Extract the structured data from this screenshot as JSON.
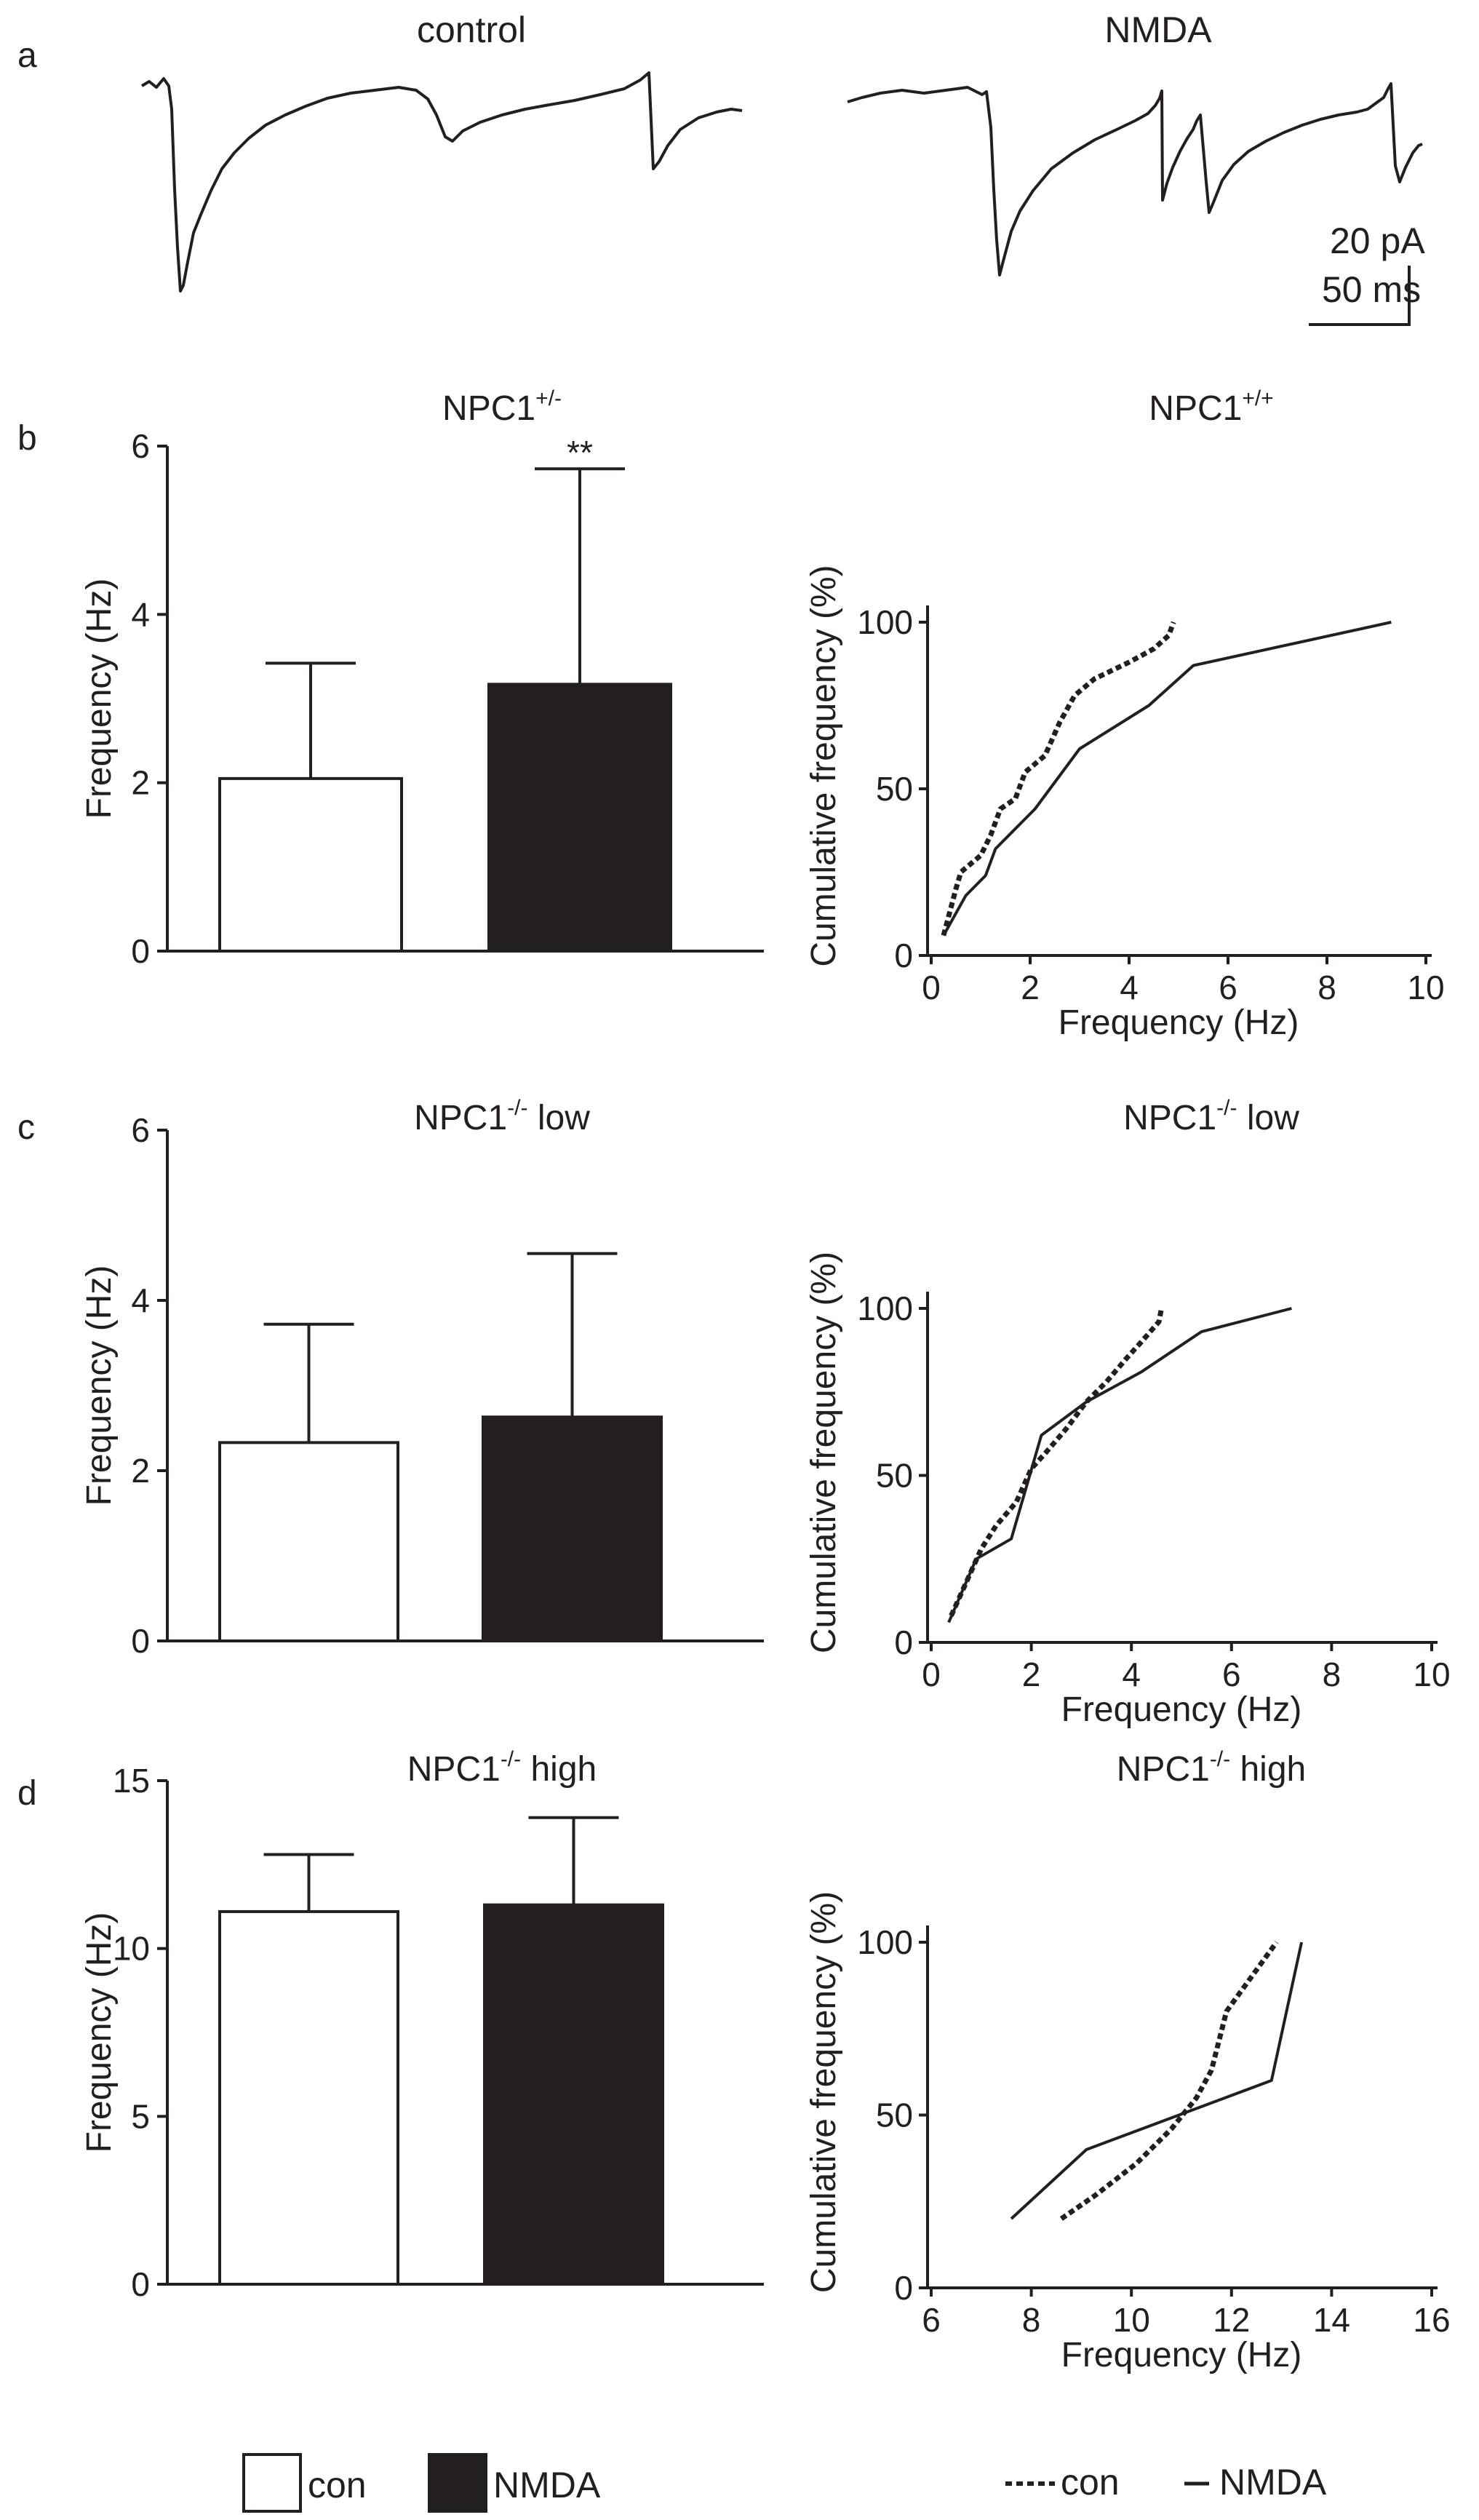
{
  "panels": {
    "a": "a",
    "b": "b",
    "c": "c",
    "d": "d"
  },
  "traces": {
    "control_label": "control",
    "nmda_label": "NMDA"
  },
  "scalebar": {
    "amplitude": "20 pA",
    "time": "50 ms"
  },
  "legend": {
    "bar_con": "con",
    "bar_nmda": "NMDA",
    "line_con": "con",
    "line_nmda": "NMDA",
    "con_style": "dashed",
    "nmda_style": "solid",
    "con_fill": "#ffffff",
    "nmda_fill": "#231f20"
  },
  "chart_data": [
    {
      "id": "b-bar",
      "type": "bar",
      "title": "NPC1",
      "title_superscript": "+/-",
      "xlabel": "",
      "ylabel": "Frequency (Hz)",
      "ylim": [
        0,
        6
      ],
      "yticks": [
        0,
        2,
        4,
        6
      ],
      "categories": [
        "con",
        "NMDA"
      ],
      "values": [
        2.05,
        3.17
      ],
      "errors": [
        1.37,
        2.56
      ],
      "colors": [
        "#ffffff",
        "#231f20"
      ],
      "annotations": [
        {
          "text": "**",
          "category": "NMDA"
        }
      ]
    },
    {
      "id": "b-cdf",
      "type": "line",
      "title": "NPC1",
      "title_superscript": "+/+",
      "xlabel": "Frequency (Hz)",
      "ylabel": "Cumulative frequency (%)",
      "xlim": [
        0,
        10
      ],
      "ylim": [
        0,
        100
      ],
      "xticks": [
        0,
        2,
        4,
        6,
        8,
        10
      ],
      "yticks": [
        0,
        50,
        100
      ],
      "series": [
        {
          "name": "con",
          "style": "dashed",
          "x": [
            0.25,
            0.5,
            0.6,
            1.0,
            1.2,
            1.4,
            1.7,
            1.9,
            2.3,
            2.6,
            2.9,
            3.3,
            4.0,
            4.5,
            4.8,
            4.9
          ],
          "y": [
            6,
            20,
            25,
            30,
            36,
            44,
            47,
            55,
            60,
            70,
            78,
            83,
            88,
            92,
            96,
            100
          ]
        },
        {
          "name": "NMDA",
          "style": "solid",
          "x": [
            0.25,
            0.7,
            1.1,
            1.3,
            2.1,
            3.0,
            4.4,
            5.3,
            9.3
          ],
          "y": [
            6,
            18,
            24,
            32,
            44,
            62,
            75,
            87,
            100
          ]
        }
      ]
    },
    {
      "id": "c-bar",
      "type": "bar",
      "title": "NPC1",
      "title_superscript": "-/-",
      "title_suffix": "low",
      "xlabel": "",
      "ylabel": "Frequency (Hz)",
      "ylim": [
        0,
        6
      ],
      "yticks": [
        0,
        2,
        4,
        6
      ],
      "categories": [
        "con",
        "NMDA"
      ],
      "values": [
        2.33,
        2.63
      ],
      "errors": [
        1.39,
        1.92
      ],
      "colors": [
        "#ffffff",
        "#231f20"
      ]
    },
    {
      "id": "c-cdf",
      "type": "line",
      "title": "NPC1",
      "title_superscript": "-/-",
      "title_suffix": "low",
      "xlabel": "Frequency (Hz)",
      "ylabel": "Cumulative frequency (%)",
      "xlim": [
        0,
        10
      ],
      "ylim": [
        0,
        100
      ],
      "xticks": [
        0,
        2,
        4,
        6,
        8,
        10
      ],
      "yticks": [
        0,
        50,
        100
      ],
      "series": [
        {
          "name": "con",
          "style": "dashed",
          "x": [
            0.4,
            0.7,
            1.0,
            1.3,
            1.7,
            2.0,
            2.3,
            2.7,
            3.1,
            3.5,
            3.9,
            4.2,
            4.55,
            4.6
          ],
          "y": [
            8,
            18,
            28,
            35,
            42,
            52,
            57,
            64,
            72,
            78,
            85,
            90,
            96,
            100
          ]
        },
        {
          "name": "NMDA",
          "style": "solid",
          "x": [
            0.35,
            0.9,
            1.6,
            2.2,
            3.1,
            4.2,
            5.4,
            7.2
          ],
          "y": [
            6,
            25,
            31,
            62,
            72,
            81,
            93,
            100
          ]
        }
      ]
    },
    {
      "id": "d-bar",
      "type": "bar",
      "title": "NPC1",
      "title_superscript": "-/-",
      "title_suffix": "high",
      "xlabel": "",
      "ylabel": "Frequency (Hz)",
      "ylim": [
        0,
        15
      ],
      "yticks": [
        0,
        5,
        10,
        15
      ],
      "categories": [
        "con",
        "NMDA"
      ],
      "values": [
        11.1,
        11.3
      ],
      "errors": [
        1.7,
        2.6
      ],
      "colors": [
        "#ffffff",
        "#231f20"
      ]
    },
    {
      "id": "d-cdf",
      "type": "line",
      "title": "NPC1",
      "title_superscript": "-/-",
      "title_suffix": "high",
      "xlabel": "Frequency (Hz)",
      "ylabel": "Cumulative frequency (%)",
      "xlim": [
        6,
        16
      ],
      "ylim": [
        0,
        100
      ],
      "xticks": [
        6,
        8,
        10,
        12,
        14,
        16
      ],
      "yticks": [
        0,
        50,
        100
      ],
      "series": [
        {
          "name": "con",
          "style": "dashed",
          "x": [
            8.6,
            9.3,
            10.1,
            10.8,
            11.3,
            11.6,
            11.9,
            12.4,
            12.9
          ],
          "y": [
            20,
            27,
            36,
            46,
            55,
            63,
            80,
            90,
            100
          ]
        },
        {
          "name": "NMDA",
          "style": "solid",
          "x": [
            7.6,
            9.1,
            12.8,
            13.4
          ],
          "y": [
            20,
            40,
            60,
            100
          ]
        }
      ]
    }
  ]
}
